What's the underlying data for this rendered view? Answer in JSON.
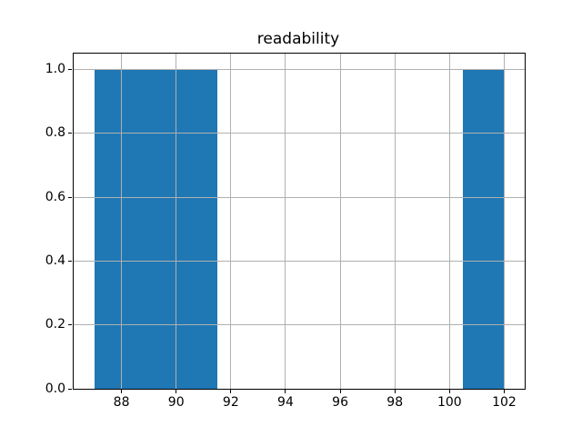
{
  "chart_data": {
    "type": "bar",
    "subtype": "histogram",
    "title": "readability",
    "xlabel": "",
    "ylabel": "",
    "xlim": [
      86.25,
      102.75
    ],
    "ylim": [
      0,
      1.05
    ],
    "grid": true,
    "grid_over_bars": true,
    "legend": null,
    "x_ticks": [
      88,
      90,
      92,
      94,
      96,
      98,
      100,
      102
    ],
    "x_tick_labels": [
      "88",
      "90",
      "92",
      "94",
      "96",
      "98",
      "100",
      "102"
    ],
    "y_ticks": [
      0.0,
      0.2,
      0.4,
      0.6,
      0.8,
      1.0
    ],
    "y_tick_labels": [
      "0.0",
      "0.2",
      "0.4",
      "0.6",
      "0.8",
      "1.0"
    ],
    "bars": [
      {
        "x_start": 87.0,
        "x_end": 91.5,
        "value": 1.0
      },
      {
        "x_start": 100.5,
        "x_end": 102.0,
        "value": 1.0
      }
    ]
  },
  "colors": {
    "bar": "#1f77b4",
    "grid": "#b0b0b0",
    "spine": "#000000",
    "text": "#000000",
    "background": "#ffffff"
  }
}
